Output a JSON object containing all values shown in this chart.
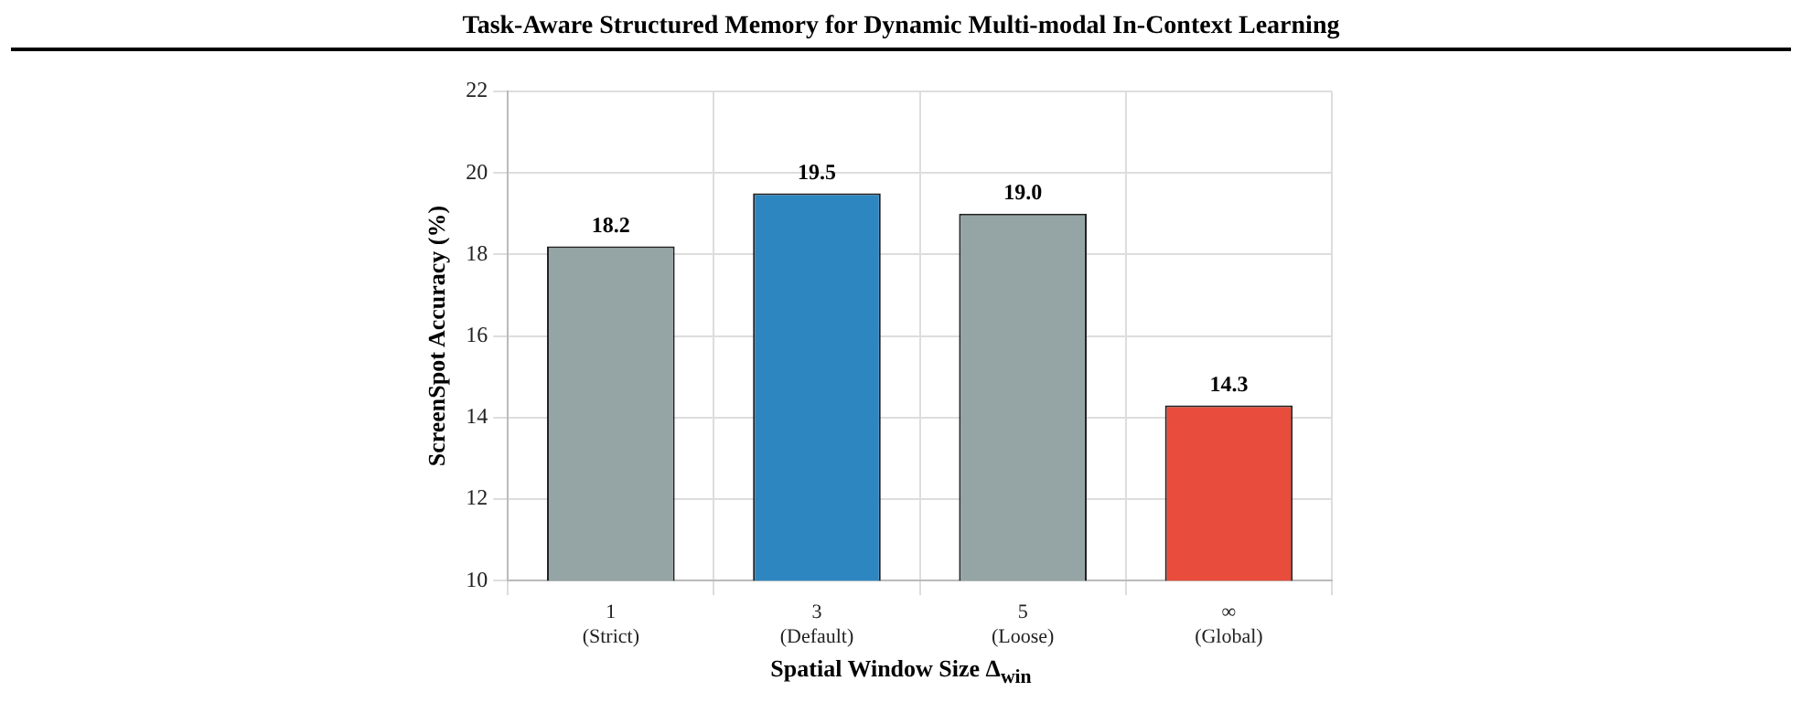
{
  "chart_data": {
    "type": "bar",
    "title": "Task-Aware Structured Memory for Dynamic Multi-modal In-Context Learning",
    "xlabel": "Spatial Window Size Δ$_{win}$",
    "ylabel": "ScreenSpot Accuracy (%)",
    "categories": [
      "1\n(Strict)",
      "3\n(Default)",
      "5\n(Loose)",
      "∞\n(Global)"
    ],
    "values": [
      18.2,
      19.5,
      19.0,
      14.3
    ],
    "colors": [
      "#95a5a6",
      "#2e86c1",
      "#95a5a6",
      "#e74c3c"
    ],
    "value_labels": [
      "18.2",
      "19.5",
      "19.0",
      "14.3"
    ],
    "ylim": [
      10,
      22
    ],
    "yticks": [
      10,
      12,
      14,
      16,
      18,
      20,
      22
    ],
    "grid": true
  }
}
